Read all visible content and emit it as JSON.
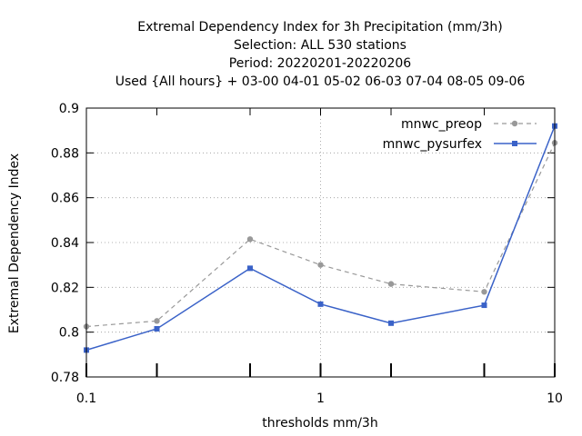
{
  "chart_data": {
    "type": "line",
    "title_lines": [
      "Extremal Dependency Index  for 3h Precipitation (mm/3h)",
      "Selection: ALL    530 stations",
      "Period: 20220201-20220206",
      "Used {All hours} + 03-00 04-01 05-02 06-03 07-04 08-05 09-06"
    ],
    "xlabel": "thresholds mm/3h",
    "ylabel": "Extremal Dependency Index",
    "x_scale": "log",
    "xlim": [
      0.1,
      10
    ],
    "ylim": [
      0.78,
      0.9
    ],
    "x_ticks": [
      0.1,
      1,
      10
    ],
    "x_tick_labels": [
      "0.1",
      "1",
      "10"
    ],
    "y_ticks": [
      0.78,
      0.8,
      0.82,
      0.84,
      0.86,
      0.88,
      0.9
    ],
    "y_tick_labels": [
      "0.78",
      "0.8",
      "0.82",
      "0.84",
      "0.86",
      "0.88",
      "0.9"
    ],
    "x": [
      0.1,
      0.2,
      0.5,
      1,
      2,
      5,
      10
    ],
    "grid": true,
    "legend_position": "top-right",
    "series": [
      {
        "name": "mnwc_preop",
        "color": "#999999",
        "dashed": true,
        "values": [
          0.8025,
          0.805,
          0.8415,
          0.83,
          0.8215,
          0.818,
          0.8845
        ]
      },
      {
        "name": "mnwc_pysurfex",
        "color": "#3a62c8",
        "dashed": false,
        "values": [
          0.792,
          0.8015,
          0.8285,
          0.8125,
          0.804,
          0.812,
          0.892
        ]
      }
    ]
  }
}
